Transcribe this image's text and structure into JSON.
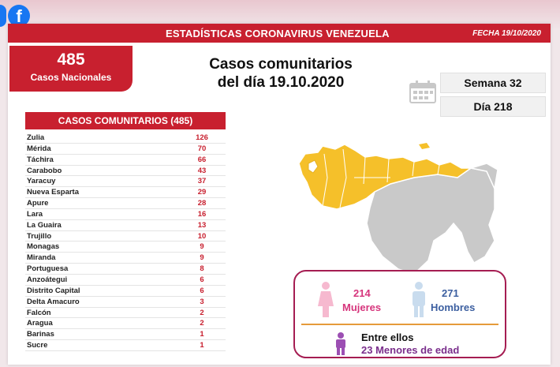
{
  "header": {
    "title": "ESTADÍSTICAS CORONAVIRUS VENEZUELA",
    "date": "FECHA 19/10/2020"
  },
  "summary": {
    "total_number": "485",
    "total_label": "Casos Nacionales",
    "headline_line1": "Casos comunitarios",
    "headline_line2": "del día 19.10.2020",
    "week": "Semana 32",
    "day": "Día 218"
  },
  "cases_table": {
    "title": "CASOS COMUNITARIOS (485)",
    "rows": [
      {
        "state": "Zulia",
        "cases": "126"
      },
      {
        "state": "Mérida",
        "cases": "70"
      },
      {
        "state": "Táchira",
        "cases": "66"
      },
      {
        "state": "Carabobo",
        "cases": "43"
      },
      {
        "state": "Yaracuy",
        "cases": "37"
      },
      {
        "state": "Nueva Esparta",
        "cases": "29"
      },
      {
        "state": "Apure",
        "cases": "28"
      },
      {
        "state": "Lara",
        "cases": "16"
      },
      {
        "state": "La Guaira",
        "cases": "13"
      },
      {
        "state": "Trujillo",
        "cases": "10"
      },
      {
        "state": "Monagas",
        "cases": "9"
      },
      {
        "state": "Miranda",
        "cases": "9"
      },
      {
        "state": "Portuguesa",
        "cases": "8"
      },
      {
        "state": "Anzoátegui",
        "cases": "6"
      },
      {
        "state": "Distrito Capital",
        "cases": "6"
      },
      {
        "state": "Delta Amacuro",
        "cases": "3"
      },
      {
        "state": "Falcón",
        "cases": "2"
      },
      {
        "state": "Aragua",
        "cases": "2"
      },
      {
        "state": "Barinas",
        "cases": "1"
      },
      {
        "state": "Sucre",
        "cases": "1"
      }
    ]
  },
  "demographics": {
    "women_count": "214",
    "women_label": "Mujeres",
    "men_count": "271",
    "men_label": "Hombres",
    "minors_intro": "Entre ellos",
    "minors_text": "23 Menores de edad"
  },
  "colors": {
    "brand_red": "#c8202f",
    "map_highlight": "#f5c02a",
    "map_gray": "#c9c9c9",
    "women": "#d6357c",
    "men": "#3c5fa0",
    "minors": "#7a2e8c"
  },
  "icons": {
    "social": "facebook-icon",
    "calendar": "calendar-icon",
    "women": "woman-icon",
    "men": "man-icon",
    "minors": "child-icon"
  }
}
